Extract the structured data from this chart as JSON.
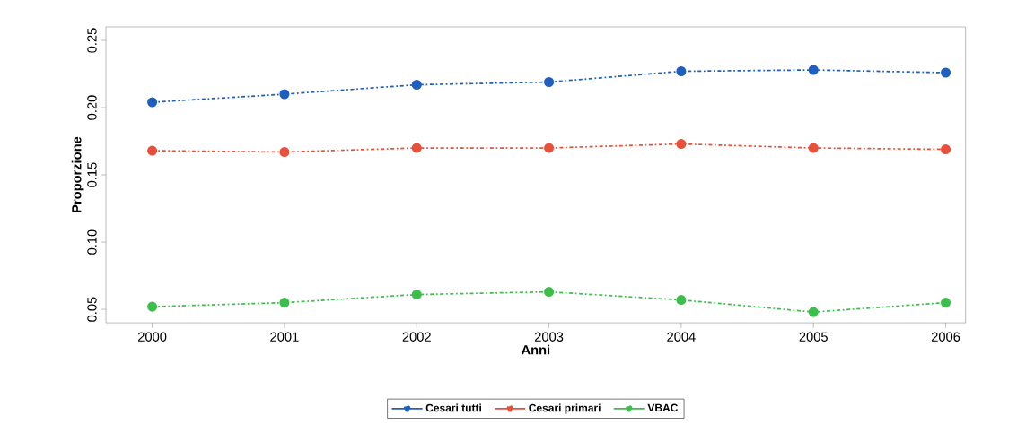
{
  "chart_data": {
    "type": "line",
    "xlabel": "Anni",
    "ylabel": "Proporzione",
    "x": [
      2000,
      2001,
      2002,
      2003,
      2004,
      2005,
      2006
    ],
    "series": [
      {
        "name": "Cesari tutti",
        "color": "#1f5fbf",
        "values": [
          0.204,
          0.21,
          0.217,
          0.219,
          0.227,
          0.228,
          0.226
        ]
      },
      {
        "name": "Cesari primari",
        "color": "#e8503a",
        "values": [
          0.168,
          0.167,
          0.17,
          0.17,
          0.173,
          0.17,
          0.169
        ]
      },
      {
        "name": "VBAC",
        "color": "#3cbf4a",
        "values": [
          0.052,
          0.055,
          0.061,
          0.063,
          0.057,
          0.048,
          0.055
        ]
      }
    ],
    "xlim": [
      1999.65,
      2006.15
    ],
    "ylim": [
      0.04,
      0.26
    ],
    "xticks": [
      2000,
      2001,
      2002,
      2003,
      2004,
      2005,
      2006
    ],
    "yticks": [
      {
        "value": 0.05,
        "label": "0.05"
      },
      {
        "value": 0.1,
        "label": "0.10"
      },
      {
        "value": 0.15,
        "label": "0.15"
      },
      {
        "value": 0.2,
        "label": "0.20"
      },
      {
        "value": 0.25,
        "label": "0.25"
      }
    ],
    "marker": "circle",
    "line_style": "dashdot",
    "legend": "bottom",
    "grid": false
  }
}
